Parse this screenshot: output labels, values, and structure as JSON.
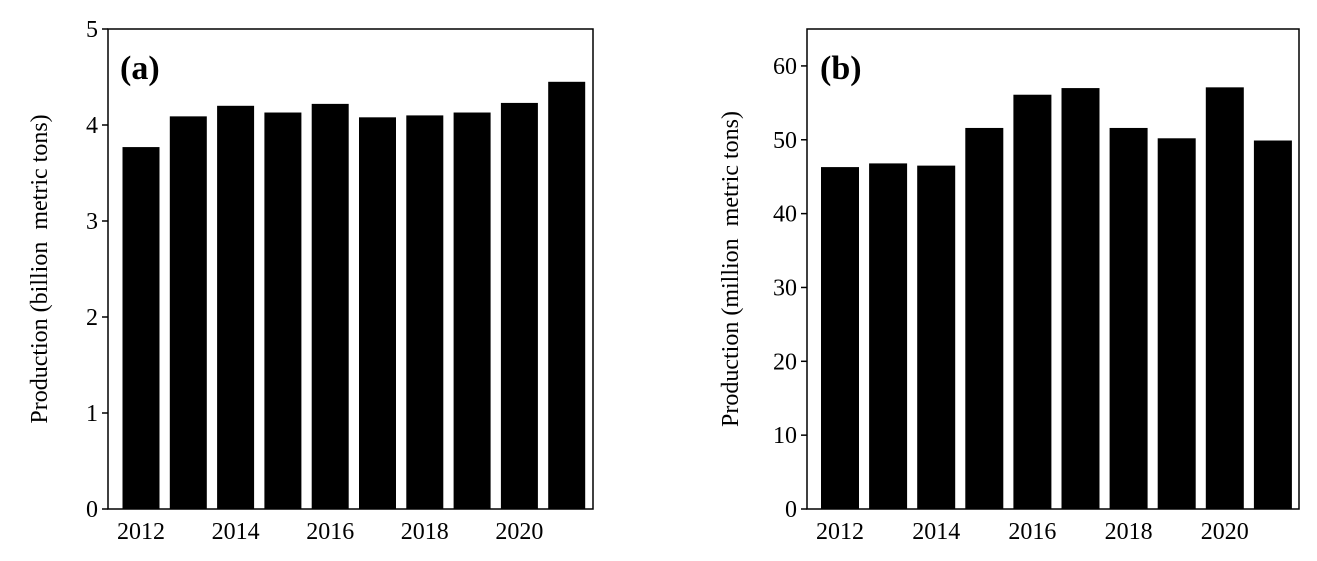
{
  "chart_data": [
    {
      "type": "bar",
      "panel_label": "(a)",
      "categories": [
        "2012",
        "2013",
        "2014",
        "2015",
        "2016",
        "2017",
        "2018",
        "2019",
        "2020",
        "2021"
      ],
      "values": [
        3.77,
        4.09,
        4.2,
        4.13,
        4.22,
        4.08,
        4.1,
        4.13,
        4.23,
        4.45
      ],
      "ylabel": "Production (billion  metric tons)",
      "xlabel": "",
      "ylim": [
        0,
        5
      ],
      "yticks": [
        "0",
        "1",
        "2",
        "3",
        "4",
        "5"
      ],
      "xtick_labels": [
        "2012",
        "2014",
        "2016",
        "2018",
        "2020"
      ],
      "grid": false,
      "bar_color": "#000000"
    },
    {
      "type": "bar",
      "panel_label": "(b)",
      "categories": [
        "2012",
        "2013",
        "2014",
        "2015",
        "2016",
        "2017",
        "2018",
        "2019",
        "2020",
        "2021"
      ],
      "values": [
        46.3,
        46.8,
        46.5,
        51.6,
        56.1,
        57.0,
        51.6,
        50.2,
        57.1,
        49.9
      ],
      "ylabel": "Production (million  metric tons)",
      "xlabel": "",
      "ylim": [
        0,
        65
      ],
      "yticks": [
        "0",
        "10",
        "20",
        "30",
        "40",
        "50",
        "60"
      ],
      "xtick_labels": [
        "2012",
        "2014",
        "2016",
        "2018",
        "2020"
      ],
      "grid": false,
      "bar_color": "#000000"
    }
  ]
}
